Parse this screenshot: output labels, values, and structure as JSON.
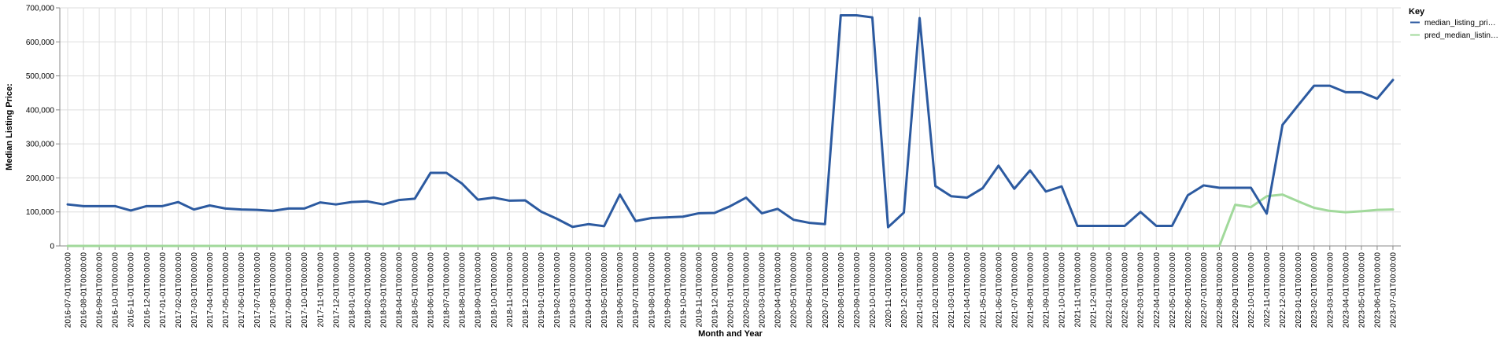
{
  "chart_data": {
    "type": "line",
    "xlabel": "Month and Year",
    "ylabel": "Median Listing Price:",
    "ylim": [
      0,
      700000
    ],
    "y_ticks": [
      "0",
      "100,000",
      "200,000",
      "300,000",
      "400,000",
      "500,000",
      "600,000",
      "700,000"
    ],
    "y_tick_values": [
      0,
      100000,
      200000,
      300000,
      400000,
      500000,
      600000,
      700000
    ],
    "grid": true,
    "legend_position": "top-right",
    "legend_title": "Key",
    "x": [
      "2016-07-01T00:00:00",
      "2016-08-01T00:00:00",
      "2016-09-01T00:00:00",
      "2016-10-01T00:00:00",
      "2016-11-01T00:00:00",
      "2016-12-01T00:00:00",
      "2017-01-01T00:00:00",
      "2017-02-01T00:00:00",
      "2017-03-01T00:00:00",
      "2017-04-01T00:00:00",
      "2017-05-01T00:00:00",
      "2017-06-01T00:00:00",
      "2017-07-01T00:00:00",
      "2017-08-01T00:00:00",
      "2017-09-01T00:00:00",
      "2017-10-01T00:00:00",
      "2017-11-01T00:00:00",
      "2017-12-01T00:00:00",
      "2018-01-01T00:00:00",
      "2018-02-01T00:00:00",
      "2018-03-01T00:00:00",
      "2018-04-01T00:00:00",
      "2018-05-01T00:00:00",
      "2018-06-01T00:00:00",
      "2018-07-01T00:00:00",
      "2018-08-01T00:00:00",
      "2018-09-01T00:00:00",
      "2018-10-01T00:00:00",
      "2018-11-01T00:00:00",
      "2018-12-01T00:00:00",
      "2019-01-01T00:00:00",
      "2019-02-01T00:00:00",
      "2019-03-01T00:00:00",
      "2019-04-01T00:00:00",
      "2019-05-01T00:00:00",
      "2019-06-01T00:00:00",
      "2019-07-01T00:00:00",
      "2019-08-01T00:00:00",
      "2019-09-01T00:00:00",
      "2019-10-01T00:00:00",
      "2019-11-01T00:00:00",
      "2019-12-01T00:00:00",
      "2020-01-01T00:00:00",
      "2020-02-01T00:00:00",
      "2020-03-01T00:00:00",
      "2020-04-01T00:00:00",
      "2020-05-01T00:00:00",
      "2020-06-01T00:00:00",
      "2020-07-01T00:00:00",
      "2020-08-01T00:00:00",
      "2020-09-01T00:00:00",
      "2020-10-01T00:00:00",
      "2020-11-01T00:00:00",
      "2020-12-01T00:00:00",
      "2021-01-01T00:00:00",
      "2021-02-01T00:00:00",
      "2021-03-01T00:00:00",
      "2021-04-01T00:00:00",
      "2021-05-01T00:00:00",
      "2021-06-01T00:00:00",
      "2021-07-01T00:00:00",
      "2021-08-01T00:00:00",
      "2021-09-01T00:00:00",
      "2021-10-01T00:00:00",
      "2021-11-01T00:00:00",
      "2021-12-01T00:00:00",
      "2022-01-01T00:00:00",
      "2022-02-01T00:00:00",
      "2022-03-01T00:00:00",
      "2022-04-01T00:00:00",
      "2022-05-01T00:00:00",
      "2022-06-01T00:00:00",
      "2022-07-01T00:00:00",
      "2022-08-01T00:00:00",
      "2022-09-01T00:00:00",
      "2022-10-01T00:00:00",
      "2022-11-01T00:00:00",
      "2022-12-01T00:00:00",
      "2023-01-01T00:00:00",
      "2023-02-01T00:00:00",
      "2023-03-01T00:00:00",
      "2023-04-01T00:00:00",
      "2023-05-01T00:00:00",
      "2023-06-01T00:00:00",
      "2023-07-01T00:00:00"
    ],
    "series": [
      {
        "name": "median_listing_pri…",
        "color": "#2c5aa0",
        "values": [
          122000,
          117000,
          117000,
          117000,
          104000,
          117000,
          117000,
          129000,
          107000,
          119000,
          110000,
          107000,
          106000,
          103000,
          110000,
          110000,
          128000,
          122000,
          129000,
          131000,
          122000,
          135000,
          139000,
          215000,
          215000,
          183000,
          136000,
          142000,
          133000,
          134000,
          101000,
          80000,
          56000,
          64000,
          58000,
          151000,
          73000,
          82000,
          84000,
          86000,
          96000,
          97000,
          117000,
          142000,
          96000,
          109000,
          77000,
          68000,
          64000,
          678000,
          678000,
          672000,
          55000,
          98000,
          670000,
          176000,
          146000,
          142000,
          170000,
          236000,
          168000,
          222000,
          160000,
          175000,
          59000,
          59000,
          59000,
          59000,
          100000,
          59000,
          59000,
          149000,
          178000,
          171000,
          171000,
          171000,
          95000,
          356000,
          414000,
          471000,
          471000,
          452000,
          452000,
          433000,
          488000
        ]
      },
      {
        "name": "pred_median_listin…",
        "color": "#a1d99b",
        "values": [
          0,
          0,
          0,
          0,
          0,
          0,
          0,
          0,
          0,
          0,
          0,
          0,
          0,
          0,
          0,
          0,
          0,
          0,
          0,
          0,
          0,
          0,
          0,
          0,
          0,
          0,
          0,
          0,
          0,
          0,
          0,
          0,
          0,
          0,
          0,
          0,
          0,
          0,
          0,
          0,
          0,
          0,
          0,
          0,
          0,
          0,
          0,
          0,
          0,
          0,
          0,
          0,
          0,
          0,
          0,
          0,
          0,
          0,
          0,
          0,
          0,
          0,
          0,
          0,
          0,
          0,
          0,
          0,
          0,
          0,
          0,
          0,
          0,
          0,
          121000,
          114000,
          146000,
          151000,
          131000,
          112000,
          103000,
          99000,
          102000,
          106000,
          107000
        ]
      }
    ]
  }
}
